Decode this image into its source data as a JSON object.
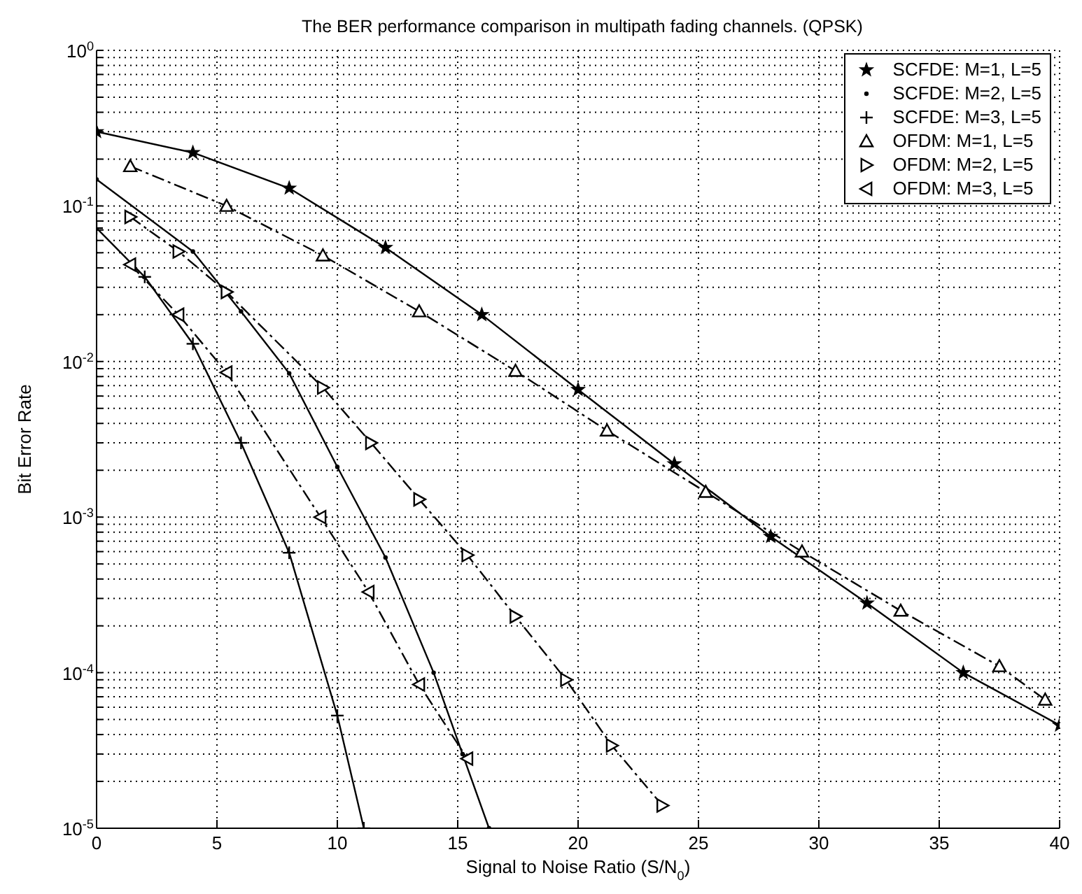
{
  "chart_data": {
    "type": "line",
    "title": "The BER performance comparison in multipath fading channels. (QPSK)",
    "xlabel": "Signal to Noise Ratio (S/N$_{0}$)",
    "ylabel": "Bit Error Rate",
    "log": "y",
    "grid": true,
    "legend": "top right",
    "xlim": [
      0,
      40
    ],
    "xticks": [
      0,
      5,
      10,
      15,
      20,
      25,
      30,
      35,
      40
    ],
    "ylim": [
      1e-05,
      1
    ],
    "yticks": [
      {
        "value": 1e-05,
        "label": "10$^{-5}$"
      },
      {
        "value": 2e-05,
        "label": null
      },
      {
        "value": 3e-05,
        "label": null
      },
      {
        "value": 4e-05,
        "label": null
      },
      {
        "value": 5e-05,
        "label": null
      },
      {
        "value": 6e-05,
        "label": null
      },
      {
        "value": 7e-05,
        "label": null
      },
      {
        "value": 8e-05,
        "label": null
      },
      {
        "value": 9e-05,
        "label": null
      },
      {
        "value": 0.0001,
        "label": "10$^{-4}$"
      },
      {
        "value": 0.0002,
        "label": null
      },
      {
        "value": 0.0003,
        "label": null
      },
      {
        "value": 0.0004,
        "label": null
      },
      {
        "value": 0.0005,
        "label": null
      },
      {
        "value": 0.0006,
        "label": null
      },
      {
        "value": 0.0007,
        "label": null
      },
      {
        "value": 0.0008,
        "label": null
      },
      {
        "value": 0.0009,
        "label": null
      },
      {
        "value": 0.001,
        "label": "10$^{-3}$"
      },
      {
        "value": 0.002,
        "label": null
      },
      {
        "value": 0.003,
        "label": null
      },
      {
        "value": 0.004,
        "label": null
      },
      {
        "value": 0.005,
        "label": null
      },
      {
        "value": 0.006,
        "label": null
      },
      {
        "value": 0.007,
        "label": null
      },
      {
        "value": 0.008,
        "label": null
      },
      {
        "value": 0.009,
        "label": null
      },
      {
        "value": 0.01,
        "label": "10$^{-2}$"
      },
      {
        "value": 0.02,
        "label": null
      },
      {
        "value": 0.03,
        "label": null
      },
      {
        "value": 0.04,
        "label": null
      },
      {
        "value": 0.05,
        "label": null
      },
      {
        "value": 0.06,
        "label": null
      },
      {
        "value": 0.07,
        "label": null
      },
      {
        "value": 0.08,
        "label": null
      },
      {
        "value": 0.09,
        "label": null
      },
      {
        "value": 0.1,
        "label": "10$^{-1}$"
      },
      {
        "value": 0.2,
        "label": null
      },
      {
        "value": 0.3,
        "label": null
      },
      {
        "value": 0.4,
        "label": null
      },
      {
        "value": 0.5,
        "label": null
      },
      {
        "value": 0.6,
        "label": null
      },
      {
        "value": 0.7,
        "label": null
      },
      {
        "value": 0.8,
        "label": null
      },
      {
        "value": 0.9,
        "label": null
      },
      {
        "value": 1,
        "label": "10$^{0}$"
      }
    ],
    "series": [
      {
        "name": "SCFDE: M=1, L=5",
        "color": "#000000",
        "marker": "star",
        "line_style": "solid",
        "x": [
          0,
          4,
          8,
          12,
          16,
          20,
          24,
          28,
          32,
          36,
          40
        ],
        "values": [
          0.3,
          0.22,
          0.13,
          0.054,
          0.02,
          0.0066,
          0.0022,
          0.00075,
          0.00028,
          0.0001,
          4.6e-05
        ]
      },
      {
        "name": "SCFDE: M=2, L=5",
        "color": "#000000",
        "marker": "point",
        "line_style": "solid",
        "x": [
          0,
          4,
          6,
          8,
          10,
          12,
          14,
          15.2,
          16.3
        ],
        "values": [
          0.148,
          0.051,
          0.021,
          0.0084,
          0.0021,
          0.00055,
          0.0001,
          3e-05,
          1e-05
        ]
      },
      {
        "name": "SCFDE: M=3, L=5",
        "color": "#000000",
        "marker": "cross",
        "line_style": "solid",
        "x": [
          0,
          2,
          4,
          6,
          8,
          10,
          11.1
        ],
        "values": [
          0.072,
          0.035,
          0.013,
          0.003,
          0.00059,
          5.3e-05,
          1e-05
        ]
      },
      {
        "name": "OFDM: M=1, L=5",
        "color": "#000000",
        "marker": "triangle",
        "line_style": "dashdot",
        "x": [
          1.4,
          5.4,
          9.4,
          13.4,
          17.4,
          21.2,
          25.3,
          29.3,
          33.4,
          37.5,
          39.4
        ],
        "values": [
          0.18,
          0.1,
          0.048,
          0.021,
          0.0087,
          0.0036,
          0.00145,
          0.0006,
          0.00025,
          0.00011,
          6.7e-05
        ]
      },
      {
        "name": "OFDM: M=2, L=5",
        "color": "#000000",
        "marker": "triangle-right",
        "line_style": "dashdot",
        "x": [
          1.4,
          3.4,
          5.4,
          9.4,
          11.4,
          13.4,
          15.4,
          17.4,
          19.5,
          21.4,
          23.5
        ],
        "values": [
          0.085,
          0.051,
          0.028,
          0.0068,
          0.003,
          0.0013,
          0.00057,
          0.00023,
          9e-05,
          3.4e-05,
          1.4e-05
        ]
      },
      {
        "name": "OFDM: M=3, L=5",
        "color": "#000000",
        "marker": "triangle-left",
        "line_style": "dashdot",
        "x": [
          1.4,
          3.4,
          5.4,
          9.3,
          11.3,
          13.4,
          15.4
        ],
        "values": [
          0.042,
          0.02,
          0.0085,
          0.001,
          0.00033,
          8.4e-05,
          2.8e-05
        ]
      }
    ]
  }
}
